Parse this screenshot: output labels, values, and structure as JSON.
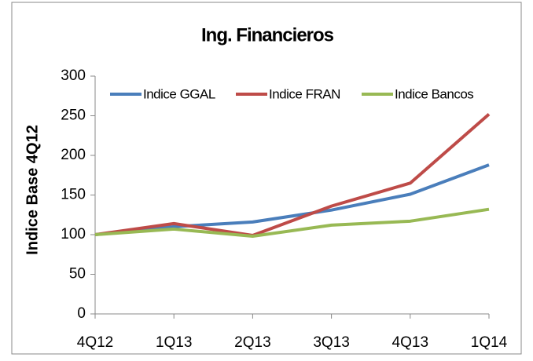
{
  "chart_data": {
    "type": "line",
    "title": "Ing. Financieros",
    "y_label": "Indice Base 4Q12",
    "categories": [
      "4Q12",
      "1Q13",
      "2Q13",
      "3Q13",
      "4Q13",
      "1Q14"
    ],
    "series": [
      {
        "name": "Indice GGAL",
        "color": "#4a7ebb",
        "values": [
          100,
          110,
          116,
          131,
          151,
          188
        ]
      },
      {
        "name": "Indice FRAN",
        "color": "#be4b48",
        "values": [
          100,
          114,
          99,
          136,
          165,
          252
        ]
      },
      {
        "name": "Indice Bancos",
        "color": "#98b954",
        "values": [
          100,
          107,
          98,
          112,
          117,
          132
        ]
      }
    ],
    "ylim": [
      0,
      300
    ],
    "yticks": [
      0,
      50,
      100,
      150,
      200,
      250,
      300
    ],
    "grid": false,
    "legend": "top"
  }
}
